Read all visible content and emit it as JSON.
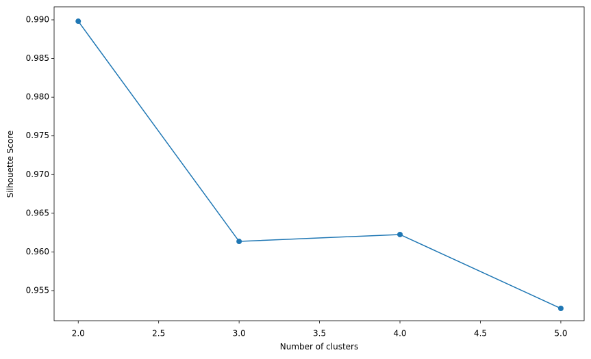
{
  "chart_data": {
    "type": "line",
    "x_label": "Number of clusters",
    "y_label": "Silhouette Score",
    "x": [
      2,
      3,
      4,
      5
    ],
    "series": [
      {
        "name": "Silhouette Score",
        "color": "#1f77b4",
        "values": [
          0.98982,
          0.96136,
          0.96225,
          0.9527
        ]
      }
    ],
    "xlim": [
      1.85,
      5.145
    ],
    "ylim": [
      0.95111,
      0.99168
    ],
    "xticks": [
      {
        "value": 2,
        "label": "2.0"
      },
      {
        "value": 2.5,
        "label": "2.5"
      },
      {
        "value": 3,
        "label": "3.0"
      },
      {
        "value": 3.5,
        "label": "3.5"
      },
      {
        "value": 4,
        "label": "4.0"
      },
      {
        "value": 4.5,
        "label": "4.5"
      },
      {
        "value": 5,
        "label": "5.0"
      }
    ],
    "yticks": [
      {
        "value": 0.955,
        "label": "0.955"
      },
      {
        "value": 0.96,
        "label": "0.960"
      },
      {
        "value": 0.965,
        "label": "0.965"
      },
      {
        "value": 0.97,
        "label": "0.970"
      },
      {
        "value": 0.975,
        "label": "0.975"
      },
      {
        "value": 0.98,
        "label": "0.980"
      },
      {
        "value": 0.985,
        "label": "0.985"
      },
      {
        "value": 0.99,
        "label": "0.990"
      }
    ],
    "grid": false,
    "markers": true
  }
}
